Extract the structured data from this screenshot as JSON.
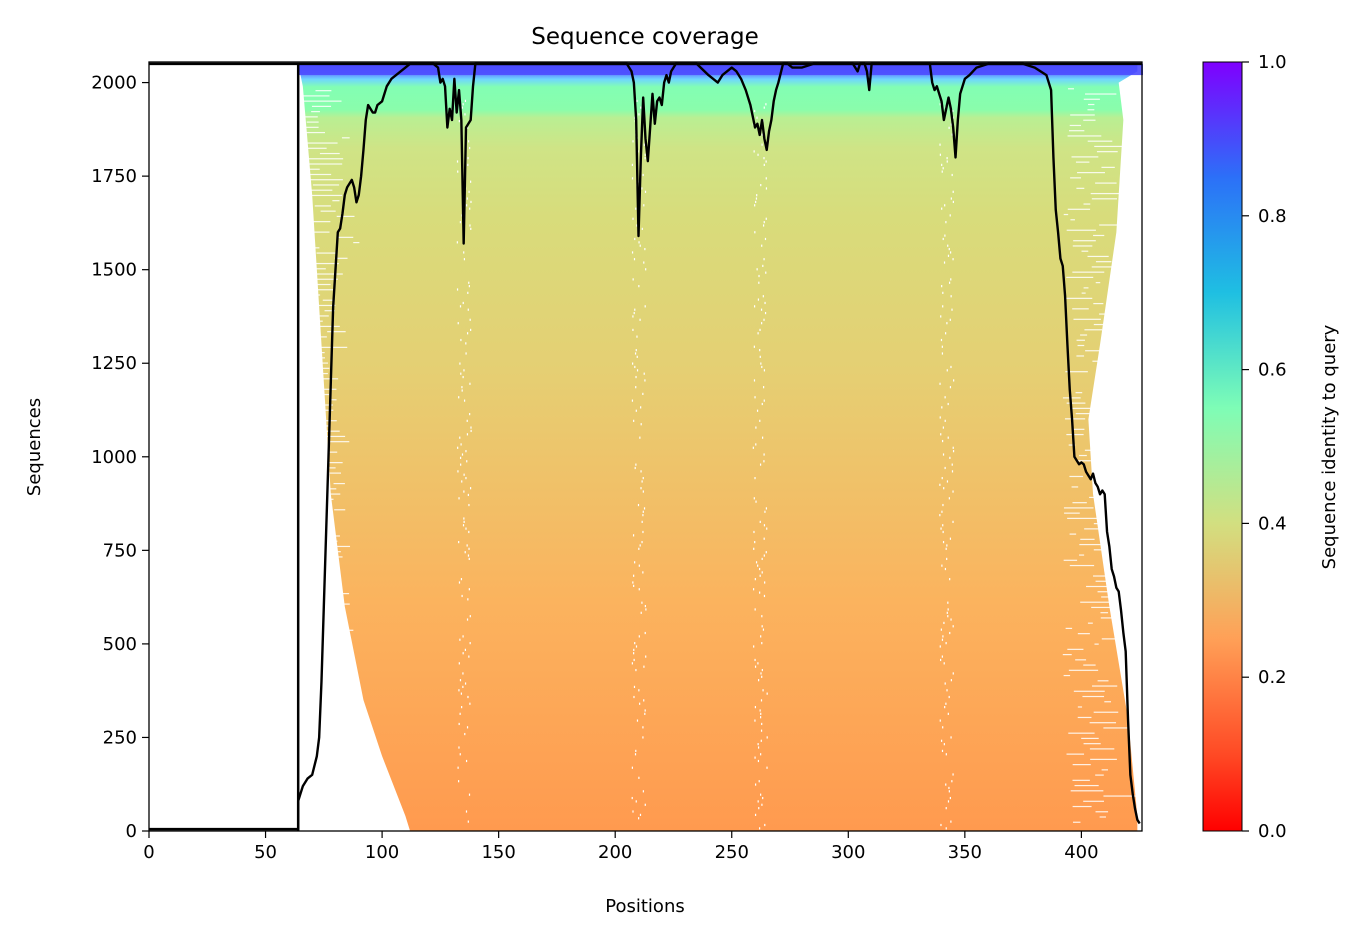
{
  "chart_data": {
    "type": "heatmap",
    "title": "Sequence coverage",
    "xlabel": "Positions",
    "ylabel": "Sequences",
    "colorbar_label": "Sequence identity to query",
    "xlim": [
      0,
      426
    ],
    "ylim": [
      0,
      2055
    ],
    "xticks": [
      0,
      50,
      100,
      150,
      200,
      250,
      300,
      350,
      400
    ],
    "yticks": [
      0,
      250,
      500,
      750,
      1000,
      1250,
      1500,
      1750,
      2000
    ],
    "colorbar_range": [
      0,
      1
    ],
    "colorbar_ticks": [
      "0.0",
      "0.2",
      "0.4",
      "0.6",
      "0.8",
      "1.0"
    ],
    "colormap": "rainbow",
    "colormap_stops": [
      "#ff0000",
      "#ff8c3f",
      "#d8dc7b",
      "#81feb4",
      "#1896f1",
      "#8000ff"
    ],
    "total_sequences": 2050,
    "query_coverage_start": 64,
    "query_coverage_end": 426,
    "identity_profile": [
      {
        "seq": 0,
        "identity": 0.23
      },
      {
        "seq": 250,
        "identity": 0.24
      },
      {
        "seq": 500,
        "identity": 0.25
      },
      {
        "seq": 750,
        "identity": 0.26
      },
      {
        "seq": 1000,
        "identity": 0.27
      },
      {
        "seq": 1250,
        "identity": 0.29
      },
      {
        "seq": 1500,
        "identity": 0.31
      },
      {
        "seq": 1750,
        "identity": 0.33
      },
      {
        "seq": 1910,
        "identity": 0.37
      },
      {
        "seq": 1920,
        "identity": 0.42
      },
      {
        "seq": 1995,
        "identity": 0.46
      },
      {
        "seq": 2020,
        "identity": 0.7
      },
      {
        "seq": 2050,
        "identity": 0.9
      }
    ],
    "coverage_gaps_x": [
      135,
      210,
      262,
      342
    ],
    "series": [
      {
        "type": "line",
        "color": "#000000",
        "x": [
          0,
          64,
          64,
          65,
          66,
          67,
          68,
          70,
          72,
          73,
          74,
          75,
          76,
          77,
          78,
          79,
          80,
          81,
          82,
          83,
          84,
          85,
          86,
          87,
          88,
          89,
          90,
          91,
          92,
          93,
          94,
          95,
          96,
          97,
          98,
          99,
          100,
          102,
          104,
          106,
          108,
          110,
          112,
          114,
          116,
          118,
          120,
          122,
          124,
          125,
          126,
          127,
          128,
          129,
          130,
          131,
          132,
          133,
          134,
          135,
          136,
          137,
          138,
          139,
          140,
          145,
          150,
          155,
          160,
          165,
          170,
          175,
          180,
          185,
          190,
          195,
          200,
          205,
          207,
          208,
          209,
          210,
          211,
          212,
          213,
          214,
          215,
          216,
          217,
          218,
          219,
          220,
          221,
          222,
          223,
          224,
          225,
          226,
          230,
          235,
          240,
          242,
          244,
          246,
          248,
          250,
          252,
          254,
          256,
          258,
          260,
          261,
          262,
          263,
          264,
          265,
          266,
          267,
          268,
          269,
          270,
          272,
          274,
          276,
          278,
          280,
          285,
          290,
          295,
          300,
          302,
          304,
          305,
          306,
          307,
          308,
          309,
          310,
          312,
          315,
          320,
          325,
          330,
          335,
          336,
          337,
          338,
          339,
          340,
          341,
          342,
          343,
          344,
          345,
          346,
          347,
          348,
          350,
          352,
          355,
          360,
          365,
          370,
          375,
          380,
          385,
          386,
          387,
          388,
          389,
          390,
          391,
          392,
          393,
          394,
          395,
          396,
          397,
          398,
          399,
          400,
          401,
          402,
          403,
          404,
          405,
          406,
          407,
          408,
          409,
          410,
          411,
          412,
          413,
          414,
          415,
          416,
          417,
          418,
          419,
          420,
          421,
          422,
          423,
          424,
          425
        ],
        "y": [
          5,
          5,
          80,
          100,
          120,
          130,
          140,
          150,
          200,
          250,
          400,
          600,
          800,
          1000,
          1200,
          1400,
          1500,
          1600,
          1610,
          1650,
          1700,
          1720,
          1730,
          1740,
          1720,
          1680,
          1700,
          1750,
          1820,
          1900,
          1940,
          1930,
          1920,
          1920,
          1940,
          1945,
          1950,
          1990,
          2010,
          2020,
          2030,
          2040,
          2050,
          2050,
          2050,
          2050,
          2050,
          2050,
          2040,
          2000,
          2010,
          1990,
          1880,
          1930,
          1900,
          2010,
          1920,
          1980,
          1900,
          1570,
          1880,
          1890,
          1900,
          1990,
          2050,
          2050,
          2050,
          2050,
          2050,
          2050,
          2050,
          2050,
          2050,
          2050,
          2050,
          2050,
          2050,
          2050,
          2030,
          2000,
          1900,
          1590,
          1800,
          1960,
          1850,
          1790,
          1880,
          1970,
          1890,
          1950,
          1960,
          1940,
          2000,
          2020,
          2000,
          2030,
          2040,
          2050,
          2050,
          2050,
          2020,
          2010,
          2000,
          2020,
          2030,
          2040,
          2030,
          2010,
          1980,
          1940,
          1880,
          1890,
          1860,
          1900,
          1850,
          1820,
          1870,
          1900,
          1950,
          1980,
          2000,
          2050,
          2050,
          2040,
          2040,
          2040,
          2050,
          2050,
          2050,
          2050,
          2050,
          2030,
          2050,
          2050,
          2050,
          2030,
          1980,
          2050,
          2050,
          2050,
          2050,
          2050,
          2050,
          2050,
          2000,
          1980,
          1990,
          1970,
          1950,
          1900,
          1930,
          1960,
          1930,
          1880,
          1800,
          1900,
          1970,
          2010,
          2020,
          2040,
          2050,
          2050,
          2050,
          2050,
          2040,
          2020,
          2000,
          1980,
          1800,
          1660,
          1600,
          1530,
          1510,
          1430,
          1300,
          1180,
          1100,
          1000,
          990,
          980,
          985,
          980,
          960,
          950,
          940,
          955,
          930,
          920,
          900,
          910,
          900,
          800,
          760,
          700,
          680,
          650,
          640,
          590,
          530,
          480,
          300,
          150,
          100,
          60,
          30,
          20
        ]
      }
    ]
  }
}
